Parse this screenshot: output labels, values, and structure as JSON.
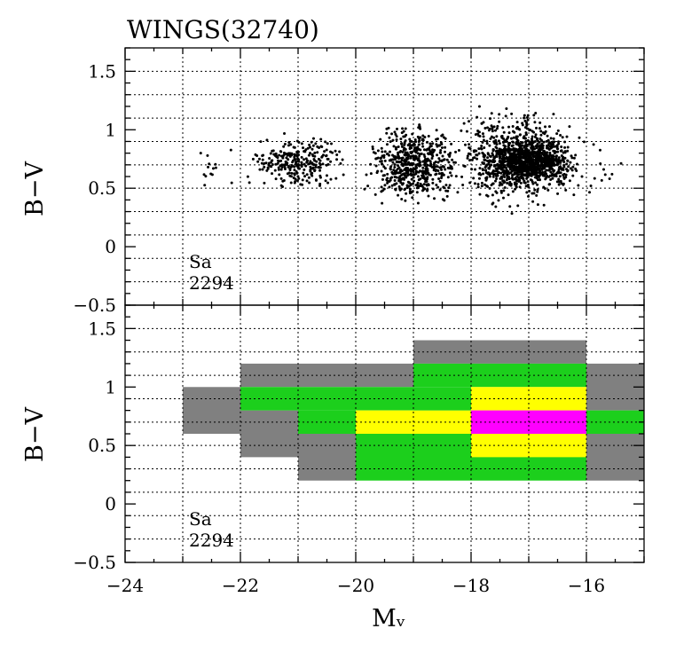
{
  "title": "WINGS(32740)",
  "chart_data": [
    {
      "type": "scatter",
      "ylabel": "B−V",
      "xlim": [
        -24,
        -15
      ],
      "ylim": [
        -0.5,
        1.7
      ],
      "x_ticks": [
        -24,
        -22,
        -20,
        -18,
        -16
      ],
      "y_ticks": [
        -0.5,
        0,
        0.5,
        1,
        1.5
      ],
      "y_tick_labels": [
        "−0.5",
        "0",
        "0.5",
        "1",
        "1.5"
      ],
      "grid": true,
      "annotation": [
        "Sa",
        "2294"
      ],
      "point_count": 2294,
      "marker_color": "#000000",
      "density_clusters": [
        {
          "x": [
            -23.0,
            -22.0
          ],
          "y": [
            0.45,
            0.95
          ],
          "weight": 0.006
        },
        {
          "x": [
            -22.0,
            -20.0
          ],
          "y": [
            0.45,
            1.0
          ],
          "weight": 0.12
        },
        {
          "x": [
            -20.0,
            -18.0
          ],
          "y": [
            0.3,
            1.1
          ],
          "weight": 0.25
        },
        {
          "x": [
            -18.0,
            -16.0
          ],
          "y": [
            0.5,
            0.95
          ],
          "weight": 0.32
        },
        {
          "x": [
            -18.5,
            -15.8
          ],
          "y": [
            0.25,
            1.25
          ],
          "weight": 0.3
        },
        {
          "x": [
            -16.0,
            -15.3
          ],
          "y": [
            0.45,
            0.85
          ],
          "weight": 0.004
        }
      ]
    },
    {
      "type": "heatmap",
      "xlabel": "Mᵥ",
      "ylabel": "B−V",
      "xlim": [
        -24,
        -15
      ],
      "ylim": [
        -0.5,
        1.7
      ],
      "x_ticks": [
        -24,
        -22,
        -20,
        -18,
        -16
      ],
      "x_tick_labels": [
        "−24",
        "−22",
        "−20",
        "−18",
        "−16"
      ],
      "y_ticks": [
        -0.5,
        0,
        0.5,
        1,
        1.5
      ],
      "y_tick_labels": [
        "−0.5",
        "0",
        "0.5",
        "1",
        "1.5"
      ],
      "grid": true,
      "annotation": [
        "Sa",
        "2294"
      ],
      "level_colors": {
        "1": "#808080",
        "2": "#1ccf1c",
        "3": "#ffff00",
        "4": "#ff00ff"
      },
      "cells": [
        {
          "x": [
            -23,
            -22
          ],
          "y": [
            0.6,
            1.0
          ],
          "level": 1
        },
        {
          "x": [
            -22,
            -21
          ],
          "y": [
            0.4,
            0.8
          ],
          "level": 1
        },
        {
          "x": [
            -22,
            -19
          ],
          "y": [
            1.0,
            1.2
          ],
          "level": 1
        },
        {
          "x": [
            -22,
            -20
          ],
          "y": [
            0.8,
            1.0
          ],
          "level": 2
        },
        {
          "x": [
            -21,
            -20
          ],
          "y": [
            0.6,
            0.8
          ],
          "level": 2
        },
        {
          "x": [
            -21,
            -20
          ],
          "y": [
            0.2,
            0.6
          ],
          "level": 1
        },
        {
          "x": [
            -20,
            -19
          ],
          "y": [
            0.8,
            1.0
          ],
          "level": 2
        },
        {
          "x": [
            -20,
            -18
          ],
          "y": [
            0.6,
            0.8
          ],
          "level": 3
        },
        {
          "x": [
            -20,
            -16
          ],
          "y": [
            0.2,
            0.6
          ],
          "level": 2
        },
        {
          "x": [
            -19,
            -16
          ],
          "y": [
            1.2,
            1.4
          ],
          "level": 1
        },
        {
          "x": [
            -19,
            -16
          ],
          "y": [
            1.0,
            1.2
          ],
          "level": 2
        },
        {
          "x": [
            -19,
            -18
          ],
          "y": [
            0.8,
            1.0
          ],
          "level": 2
        },
        {
          "x": [
            -18,
            -16
          ],
          "y": [
            0.8,
            1.0
          ],
          "level": 3
        },
        {
          "x": [
            -18,
            -16
          ],
          "y": [
            0.6,
            0.8
          ],
          "level": 4
        },
        {
          "x": [
            -18,
            -16
          ],
          "y": [
            0.4,
            0.6
          ],
          "level": 3
        },
        {
          "x": [
            -16,
            -15
          ],
          "y": [
            0.8,
            1.2
          ],
          "level": 1
        },
        {
          "x": [
            -16,
            -15
          ],
          "y": [
            0.6,
            0.8
          ],
          "level": 2
        },
        {
          "x": [
            -16,
            -15
          ],
          "y": [
            0.2,
            0.6
          ],
          "level": 1
        }
      ]
    }
  ]
}
